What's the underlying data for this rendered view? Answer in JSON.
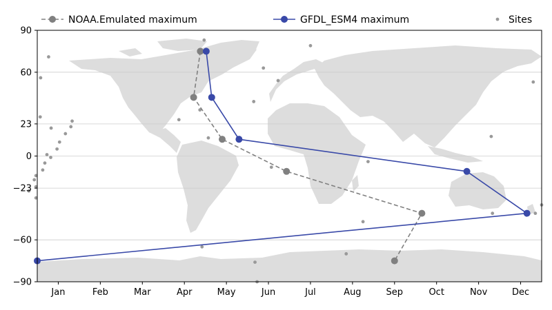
{
  "chart_data": {
    "type": "line",
    "title": "",
    "xlabel": "",
    "ylabel": "",
    "xlim": [
      0.5,
      12.5
    ],
    "ylim": [
      -90,
      90
    ],
    "x_ticks": [
      {
        "value": 1,
        "label": "Jan"
      },
      {
        "value": 2,
        "label": "Feb"
      },
      {
        "value": 3,
        "label": "Mar"
      },
      {
        "value": 4,
        "label": "Apr"
      },
      {
        "value": 5,
        "label": "May"
      },
      {
        "value": 6,
        "label": "Jun"
      },
      {
        "value": 7,
        "label": "Jul"
      },
      {
        "value": 8,
        "label": "Aug"
      },
      {
        "value": 9,
        "label": "Sep"
      },
      {
        "value": 10,
        "label": "Oct"
      },
      {
        "value": 11,
        "label": "Nov"
      },
      {
        "value": 12,
        "label": "Dec"
      }
    ],
    "y_ticks": [
      {
        "value": 90,
        "label": "90"
      },
      {
        "value": 60,
        "label": "60"
      },
      {
        "value": 23,
        "label": "23"
      },
      {
        "value": 0,
        "label": "0"
      },
      {
        "value": -23,
        "label": "−23"
      },
      {
        "value": -60,
        "label": "−60"
      },
      {
        "value": -90,
        "label": "−90"
      }
    ],
    "grid": true,
    "background": "world map (land in light gray)",
    "legend_position": "top",
    "series": [
      {
        "name": "NOAA.Emulated maximum",
        "style": "dashed",
        "color": "#808080",
        "points": [
          {
            "x": 4.38,
            "y": 75
          },
          {
            "x": 4.22,
            "y": 42
          },
          {
            "x": 4.9,
            "y": 12
          },
          {
            "x": 6.43,
            "y": -11
          },
          {
            "x": 9.65,
            "y": -41
          },
          {
            "x": 9.0,
            "y": -75
          }
        ]
      },
      {
        "name": "GFDL_ESM4 maximum",
        "style": "solid",
        "color": "#3949a8",
        "points": [
          {
            "x": 4.52,
            "y": 75
          },
          {
            "x": 4.65,
            "y": 42
          },
          {
            "x": 5.3,
            "y": 12
          },
          {
            "x": 10.72,
            "y": -11
          },
          {
            "x": 12.15,
            "y": -41
          },
          {
            "x": 0.5,
            "y": -75
          }
        ]
      },
      {
        "name": "Sites",
        "style": "scatter",
        "color": "#999999",
        "points": [
          {
            "x": 4.47,
            "y": 83
          },
          {
            "x": 0.77,
            "y": 71
          },
          {
            "x": 7.0,
            "y": 79
          },
          {
            "x": 0.58,
            "y": 56
          },
          {
            "x": 5.88,
            "y": 63
          },
          {
            "x": 6.23,
            "y": 54
          },
          {
            "x": 12.3,
            "y": 53
          },
          {
            "x": 5.65,
            "y": 39
          },
          {
            "x": 4.37,
            "y": 33
          },
          {
            "x": 3.87,
            "y": 26
          },
          {
            "x": 0.57,
            "y": 28
          },
          {
            "x": 1.33,
            "y": 25
          },
          {
            "x": 0.83,
            "y": 20
          },
          {
            "x": 1.3,
            "y": 21
          },
          {
            "x": 1.17,
            "y": 16
          },
          {
            "x": 1.03,
            "y": 10
          },
          {
            "x": 4.57,
            "y": 13
          },
          {
            "x": 11.3,
            "y": 14
          },
          {
            "x": 0.97,
            "y": 5
          },
          {
            "x": 0.73,
            "y": 1
          },
          {
            "x": 0.82,
            "y": -1
          },
          {
            "x": 0.68,
            "y": -5
          },
          {
            "x": 0.63,
            "y": -10
          },
          {
            "x": 6.07,
            "y": -8
          },
          {
            "x": 8.37,
            "y": -4
          },
          {
            "x": 0.47,
            "y": -14
          },
          {
            "x": 0.43,
            "y": -17
          },
          {
            "x": 0.47,
            "y": -22
          },
          {
            "x": 0.3,
            "y": -25
          },
          {
            "x": 0.47,
            "y": -30
          },
          {
            "x": 12.5,
            "y": -35
          },
          {
            "x": 11.33,
            "y": -41
          },
          {
            "x": 12.35,
            "y": -41
          },
          {
            "x": 8.25,
            "y": -47
          },
          {
            "x": 4.42,
            "y": -65
          },
          {
            "x": 7.85,
            "y": -70
          },
          {
            "x": 5.68,
            "y": -76
          },
          {
            "x": 5.73,
            "y": -90
          }
        ]
      }
    ]
  }
}
